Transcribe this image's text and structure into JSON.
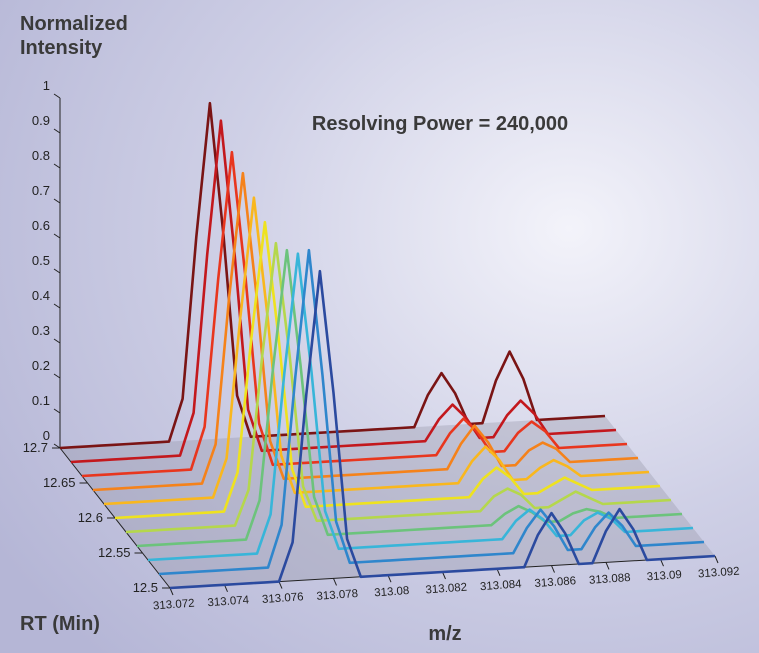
{
  "chart_data": {
    "type": "waterfall",
    "z_label": "Normalized Intensity",
    "annotation": "Resolving Power = 240,000",
    "y_label": "RT (Min)",
    "x_label": "m/z",
    "xlim": [
      313.072,
      313.092
    ],
    "xticks": [
      313.072,
      313.074,
      313.076,
      313.078,
      313.08,
      313.082,
      313.084,
      313.086,
      313.088,
      313.09,
      313.092
    ],
    "ylim": [
      12.5,
      12.7
    ],
    "yticks": [
      12.5,
      12.55,
      12.6,
      12.65,
      12.7
    ],
    "zlim": [
      0,
      1
    ],
    "zticks": [
      0,
      0.1,
      0.2,
      0.3,
      0.4,
      0.5,
      0.6,
      0.7,
      0.8,
      0.9,
      1
    ],
    "x": [
      313.072,
      313.0725,
      313.073,
      313.0735,
      313.074,
      313.0745,
      313.075,
      313.0755,
      313.076,
      313.0765,
      313.077,
      313.0775,
      313.078,
      313.0785,
      313.079,
      313.0795,
      313.08,
      313.0805,
      313.081,
      313.0815,
      313.082,
      313.0825,
      313.083,
      313.0835,
      313.084,
      313.0845,
      313.085,
      313.0855,
      313.086,
      313.0865,
      313.087,
      313.0875,
      313.088,
      313.0885,
      313.089,
      313.0895,
      313.09,
      313.0905,
      313.091,
      313.0915,
      313.092
    ],
    "series": [
      {
        "rt": 12.7,
        "color": "#7a1414",
        "values": [
          0,
          0,
          0,
          0,
          0,
          0,
          0,
          0,
          0,
          0.12,
          0.58,
          0.96,
          0.58,
          0.12,
          0,
          0,
          0,
          0,
          0,
          0,
          0,
          0,
          0,
          0,
          0,
          0,
          0,
          0.09,
          0.15,
          0.09,
          0,
          0,
          0.12,
          0.2,
          0.12,
          0,
          0,
          0,
          0,
          0,
          0
        ]
      },
      {
        "rt": 12.68,
        "color": "#c3181d",
        "values": [
          0,
          0,
          0,
          0,
          0,
          0,
          0,
          0,
          0,
          0.12,
          0.57,
          0.95,
          0.57,
          0.12,
          0,
          0,
          0,
          0,
          0,
          0,
          0,
          0,
          0,
          0,
          0,
          0,
          0,
          0.06,
          0.1,
          0.06,
          0,
          0,
          0.06,
          0.1,
          0.06,
          0,
          0,
          0,
          0,
          0,
          0
        ]
      },
      {
        "rt": 12.66,
        "color": "#e8361e",
        "values": [
          0,
          0,
          0,
          0,
          0,
          0,
          0,
          0,
          0,
          0.12,
          0.54,
          0.9,
          0.54,
          0.12,
          0,
          0,
          0,
          0,
          0,
          0,
          0,
          0,
          0,
          0,
          0,
          0,
          0,
          0.06,
          0.1,
          0.06,
          0,
          0,
          0.05,
          0.08,
          0.05,
          0,
          0,
          0,
          0,
          0,
          0
        ]
      },
      {
        "rt": 12.64,
        "color": "#f5821a",
        "values": [
          0,
          0,
          0,
          0,
          0,
          0,
          0,
          0,
          0,
          0.11,
          0.53,
          0.88,
          0.53,
          0.11,
          0,
          0,
          0,
          0,
          0,
          0,
          0,
          0,
          0,
          0,
          0,
          0,
          0,
          0.07,
          0.12,
          0.07,
          0,
          0,
          0.04,
          0.06,
          0.04,
          0,
          0,
          0,
          0,
          0,
          0
        ]
      },
      {
        "rt": 12.62,
        "color": "#f9b71e",
        "values": [
          0,
          0,
          0,
          0,
          0,
          0,
          0,
          0,
          0,
          0.11,
          0.51,
          0.85,
          0.51,
          0.11,
          0,
          0,
          0,
          0,
          0,
          0,
          0,
          0,
          0,
          0,
          0,
          0,
          0,
          0.06,
          0.1,
          0.06,
          0,
          0,
          0.03,
          0.05,
          0.03,
          0,
          0,
          0,
          0,
          0,
          0
        ]
      },
      {
        "rt": 12.6,
        "color": "#eee21f",
        "values": [
          0,
          0,
          0,
          0,
          0,
          0,
          0,
          0,
          0,
          0.11,
          0.49,
          0.82,
          0.49,
          0.11,
          0,
          0,
          0,
          0,
          0,
          0,
          0,
          0,
          0,
          0,
          0,
          0,
          0,
          0.05,
          0.08,
          0.05,
          0,
          0,
          0.02,
          0.04,
          0.02,
          0,
          0,
          0,
          0,
          0,
          0
        ]
      },
      {
        "rt": 12.58,
        "color": "#b5d74c",
        "values": [
          0,
          0,
          0,
          0,
          0,
          0,
          0,
          0,
          0,
          0.1,
          0.48,
          0.8,
          0.48,
          0.1,
          0,
          0,
          0,
          0,
          0,
          0,
          0,
          0,
          0,
          0,
          0,
          0,
          0,
          0.04,
          0.06,
          0.04,
          0,
          0,
          0.02,
          0.04,
          0.02,
          0,
          0,
          0,
          0,
          0,
          0
        ]
      },
      {
        "rt": 12.56,
        "color": "#6cc37c",
        "values": [
          0,
          0,
          0,
          0,
          0,
          0,
          0,
          0,
          0,
          0.11,
          0.49,
          0.82,
          0.49,
          0.11,
          0,
          0,
          0,
          0,
          0,
          0,
          0,
          0,
          0,
          0,
          0,
          0,
          0,
          0.03,
          0.05,
          0.03,
          0,
          0,
          0.02,
          0.03,
          0.02,
          0,
          0,
          0,
          0,
          0,
          0
        ]
      },
      {
        "rt": 12.54,
        "color": "#38b5d9",
        "values": [
          0,
          0,
          0,
          0,
          0,
          0,
          0,
          0,
          0,
          0.11,
          0.51,
          0.85,
          0.51,
          0.11,
          0,
          0,
          0,
          0,
          0,
          0,
          0,
          0,
          0,
          0,
          0,
          0,
          0,
          0.05,
          0.08,
          0.05,
          0,
          0,
          0.04,
          0.06,
          0.04,
          0,
          0,
          0,
          0,
          0,
          0
        ]
      },
      {
        "rt": 12.52,
        "color": "#2f86cc",
        "values": [
          0,
          0,
          0,
          0,
          0,
          0,
          0,
          0,
          0,
          0.12,
          0.54,
          0.9,
          0.54,
          0.12,
          0,
          0,
          0,
          0,
          0,
          0,
          0,
          0,
          0,
          0,
          0,
          0,
          0,
          0.07,
          0.12,
          0.07,
          0,
          0,
          0.06,
          0.1,
          0.06,
          0,
          0,
          0,
          0,
          0,
          0
        ]
      },
      {
        "rt": 12.5,
        "color": "#2b4a9f",
        "values": [
          0,
          0,
          0,
          0,
          0,
          0,
          0,
          0,
          0,
          0.11,
          0.53,
          0.88,
          0.53,
          0.11,
          0,
          0,
          0,
          0,
          0,
          0,
          0,
          0,
          0,
          0,
          0,
          0,
          0,
          0.09,
          0.15,
          0.09,
          0,
          0,
          0.09,
          0.15,
          0.09,
          0,
          0,
          0,
          0,
          0,
          0
        ]
      }
    ]
  }
}
